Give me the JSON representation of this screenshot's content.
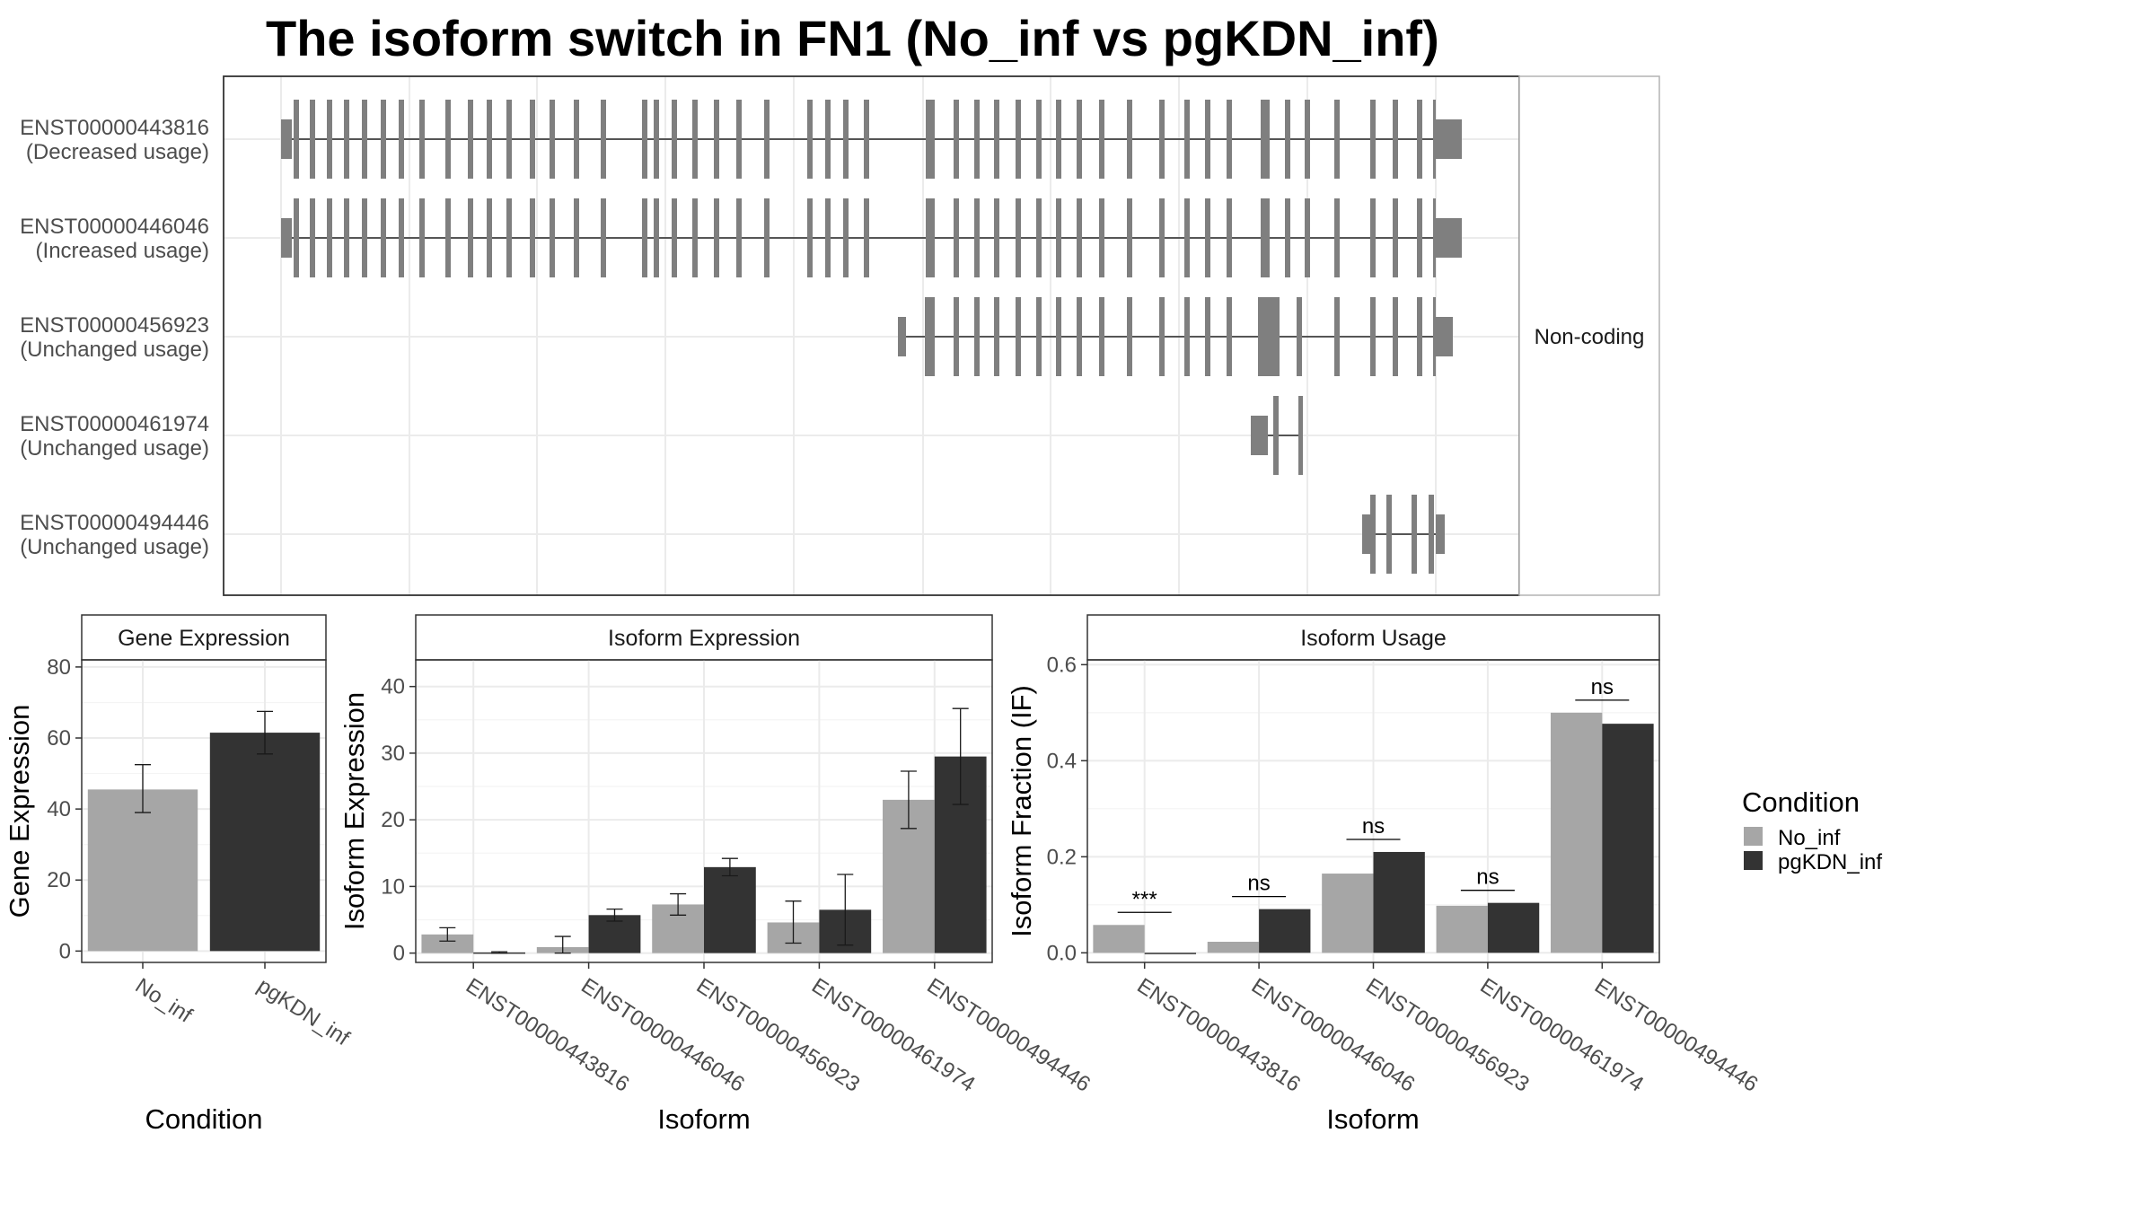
{
  "title": "The isoform switch in FN1 (No_inf vs pgKDN_inf)",
  "colors": {
    "No_inf": "#a6a6a6",
    "pgKDN_inf": "#333333",
    "exon": "#7f7f7f",
    "grid": "#ebebeb"
  },
  "transcript_panel": {
    "side_label": "Non-coding",
    "rows": [
      {
        "id": "ENST00000443816",
        "usage": "(Decreased usage)"
      },
      {
        "id": "ENST00000446046",
        "usage": "(Increased usage)"
      },
      {
        "id": "ENST00000456923",
        "usage": "(Unchanged usage)"
      },
      {
        "id": "ENST00000461974",
        "usage": "(Unchanged usage)"
      },
      {
        "id": "ENST00000494446",
        "usage": "(Unchanged usage)"
      }
    ]
  },
  "legend": {
    "title": "Condition",
    "items": [
      "No_inf",
      "pgKDN_inf"
    ]
  },
  "chart_data": [
    {
      "type": "bar",
      "title": "Gene Expression",
      "xlabel": "Condition",
      "ylabel": "Gene Expression",
      "categories": [
        "No_inf",
        "pgKDN_inf"
      ],
      "values": [
        45.5,
        61.5
      ],
      "error": [
        [
          39,
          52.5
        ],
        [
          55.5,
          67.5
        ]
      ],
      "yticks": [
        0,
        20,
        40,
        60,
        80
      ],
      "ylim": [
        -3.2,
        82
      ]
    },
    {
      "type": "bar",
      "title": "Isoform Expression",
      "xlabel": "Isoform",
      "ylabel": "Isoform Expression",
      "categories": [
        "ENST00000443816",
        "ENST00000446046",
        "ENST00000456923",
        "ENST00000461974",
        "ENST00000494446"
      ],
      "series": [
        {
          "name": "No_inf",
          "values": [
            2.8,
            0.9,
            7.3,
            4.6,
            23.0
          ],
          "error": [
            [
              1.8,
              3.8
            ],
            [
              0.0,
              2.5
            ],
            [
              5.7,
              8.9
            ],
            [
              1.5,
              7.8
            ],
            [
              18.7,
              27.3
            ]
          ]
        },
        {
          "name": "pgKDN_inf",
          "values": [
            0.1,
            5.7,
            12.9,
            6.5,
            29.5
          ],
          "error": [
            [
              0.0,
              0.2
            ],
            [
              4.8,
              6.6
            ],
            [
              11.6,
              14.2
            ],
            [
              1.2,
              11.8
            ],
            [
              22.3,
              36.7
            ]
          ]
        }
      ],
      "yticks": [
        0,
        10,
        20,
        30,
        40
      ],
      "ylim": [
        -1.4,
        44
      ]
    },
    {
      "type": "bar",
      "title": "Isoform Usage",
      "xlabel": "Isoform",
      "ylabel": "Isoform Fraction (IF)",
      "categories": [
        "ENST00000443816",
        "ENST00000446046",
        "ENST00000456923",
        "ENST00000461974",
        "ENST00000494446"
      ],
      "series": [
        {
          "name": "No_inf",
          "values": [
            0.058,
            0.023,
            0.165,
            0.098,
            0.5
          ]
        },
        {
          "name": "pgKDN_inf",
          "values": [
            0.0,
            0.091,
            0.21,
            0.104,
            0.477
          ]
        }
      ],
      "annotations": [
        "***",
        "ns",
        "ns",
        "ns",
        "ns"
      ],
      "yticks": [
        0.0,
        0.2,
        0.4,
        0.6
      ],
      "ylim": [
        -0.02,
        0.61
      ]
    }
  ]
}
